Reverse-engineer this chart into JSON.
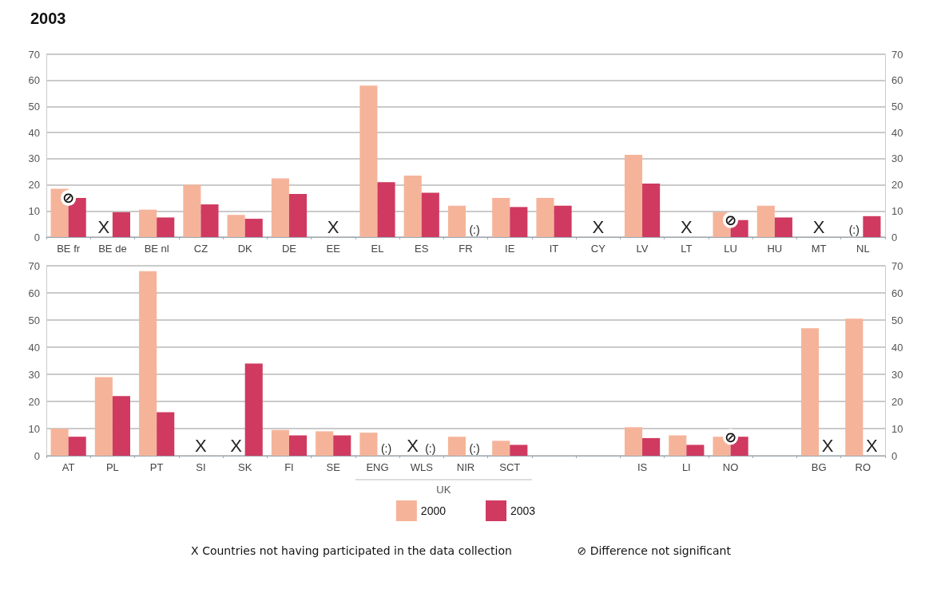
{
  "chart_data": [
    {
      "type": "bar",
      "title": "2003",
      "categories": [
        "BE fr",
        "BE de",
        "BE nl",
        "CZ",
        "DK",
        "DE",
        "EE",
        "EL",
        "ES",
        "FR",
        "IE",
        "IT",
        "CY",
        "LV",
        "LT",
        "LU",
        "HU",
        "MT",
        "NL"
      ],
      "series": [
        {
          "color": "#f5b49a",
          "values": [
            18.5,
            null,
            10.5,
            20,
            8.5,
            22.5,
            null,
            58,
            23.5,
            12,
            15,
            15,
            null,
            31.5,
            null,
            9.5,
            12,
            null,
            null
          ]
        },
        {
          "color": "#d03a60",
          "values": [
            15,
            9.5,
            7.5,
            12.5,
            7,
            16.5,
            null,
            21,
            17,
            null,
            11.5,
            12,
            null,
            20.5,
            null,
            6.5,
            7.5,
            null,
            8
          ]
        }
      ],
      "ylim": [
        0,
        70
      ],
      "yticks": [
        0,
        10,
        20,
        30,
        40,
        50,
        60,
        70
      ],
      "y2lim": [
        0,
        70
      ],
      "y2ticks": [
        0,
        10,
        20,
        30,
        40,
        50,
        60,
        70
      ],
      "grid": "y",
      "legend": false,
      "annotations": [
        {
          "text": "⊘",
          "x": "BE fr",
          "y": 15
        },
        {
          "text": "X",
          "x": "BE de",
          "y": 0
        },
        {
          "text": "(:)",
          "x": "FR",
          "y": 0
        },
        {
          "text": "⊘",
          "x": "LU",
          "y": 6.5
        },
        {
          "text": "(:)",
          "x": "NL",
          "y": 0
        },
        "X",
        "X",
        "X",
        "X"
      ]
    },
    {
      "type": "bar",
      "categories": [
        "AT",
        "PL",
        "PT",
        "SI",
        "SK",
        "FI",
        "SE",
        "ENG",
        "WLS",
        "NIR",
        "SCT",
        null,
        null,
        "IS",
        "LI",
        "NO",
        null,
        "BG",
        "RO"
      ],
      "series": [
        {
          "name": "2000",
          "color": "#f5b49a",
          "values": [
            10,
            29,
            68,
            null,
            null,
            9.5,
            9,
            8.5,
            null,
            7,
            5.5,
            null,
            null,
            10.5,
            7.5,
            7,
            null,
            47,
            50.5
          ]
        },
        {
          "name": "2003",
          "color": "#d03a60",
          "values": [
            7,
            22,
            16,
            null,
            34,
            7.5,
            7.5,
            null,
            null,
            null,
            4,
            null,
            null,
            6.5,
            4,
            7,
            null,
            null,
            null
          ]
        }
      ],
      "ylim": [
        0,
        70
      ],
      "yticks": [
        0,
        10,
        20,
        30,
        40,
        50,
        60,
        70
      ],
      "y2lim": [
        0,
        70
      ],
      "y2ticks": [
        0,
        10,
        20,
        30,
        40,
        50,
        60,
        70
      ],
      "grid": "y",
      "legend": "bottom",
      "annotations": [
        {
          "text": "X",
          "x": "SK",
          "y": 0
        },
        {
          "text": "(:)",
          "x": "ENG",
          "y": 0
        },
        {
          "text": "(:)",
          "x": "NIR",
          "y": 0
        },
        "X",
        "X",
        "(:)",
        "UK",
        "X Countries not having participated in the data collection",
        "⊘ Difference not significant",
        {
          "text": "⊘",
          "x": "NO",
          "y": 7
        },
        {
          "text": "X",
          "x": "BG",
          "y": 0
        },
        {
          "text": "X",
          "x": "RO",
          "y": 0
        }
      ]
    }
  ]
}
